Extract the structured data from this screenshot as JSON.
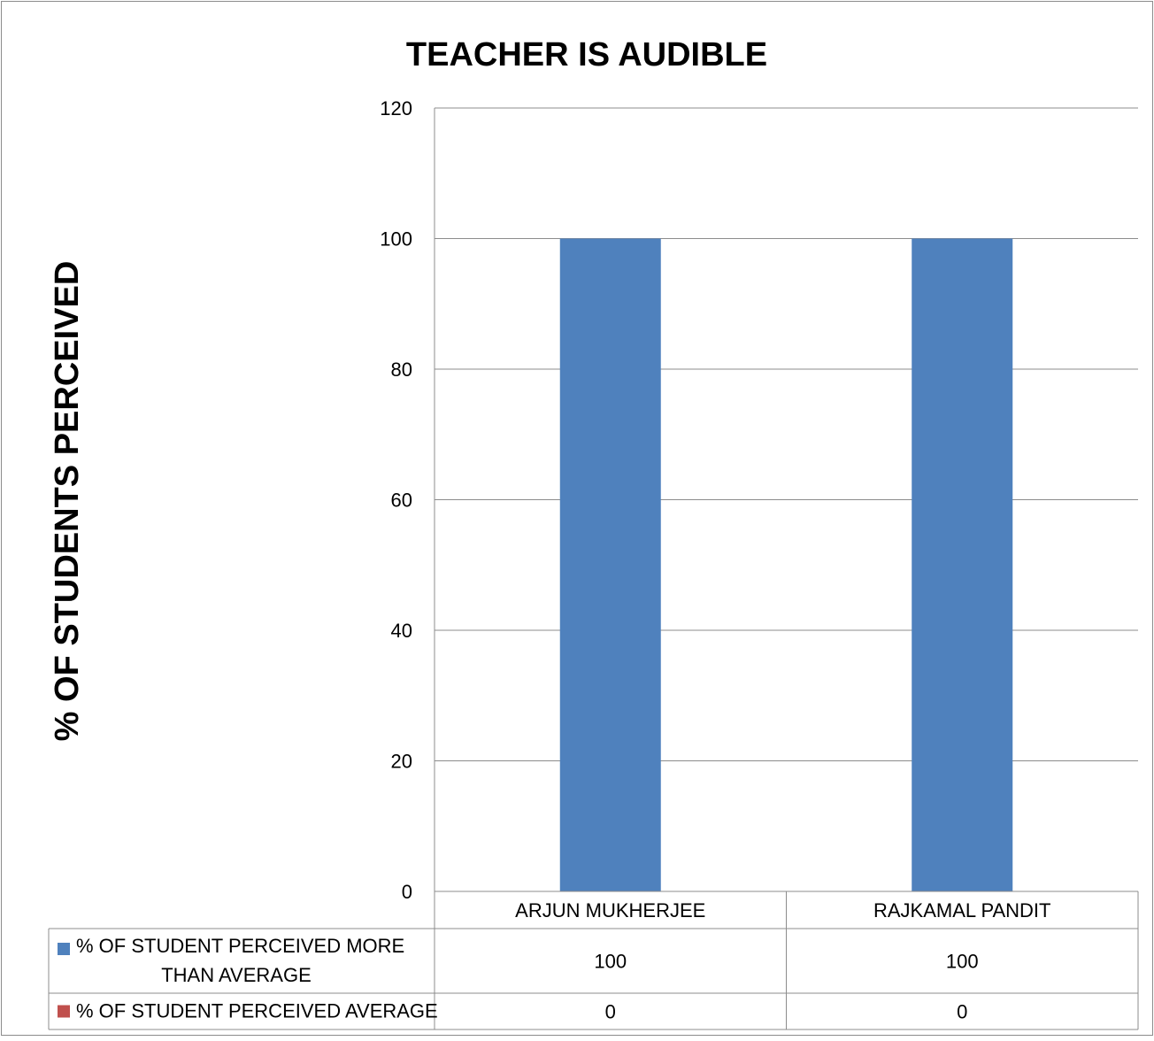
{
  "chart_data": {
    "type": "bar",
    "title": "TEACHER IS AUDIBLE",
    "ylabel": "% OF STUDENTS PERCEIVED",
    "xlabel": "",
    "ylim": [
      0,
      120
    ],
    "yticks": [
      0,
      20,
      40,
      60,
      80,
      100,
      120
    ],
    "grid": true,
    "legend_placement": "data-table",
    "categories": [
      "ARJUN MUKHERJEE",
      "RAJKAMAL PANDIT"
    ],
    "series": [
      {
        "name": "% OF STUDENT PERCEIVED MORE THAN AVERAGE",
        "name_lines": [
          "% OF STUDENT PERCEIVED MORE",
          "THAN AVERAGE"
        ],
        "values": [
          100,
          100
        ],
        "value_labels": [
          "100",
          "100"
        ],
        "color": "#4F81BD"
      },
      {
        "name": "% OF STUDENT PERCEIVED AVERAGE",
        "name_lines": [
          "% OF STUDENT PERCEIVED AVERAGE"
        ],
        "values": [
          0,
          0
        ],
        "value_labels": [
          "0",
          "0"
        ],
        "color": "#C0504D"
      }
    ]
  }
}
